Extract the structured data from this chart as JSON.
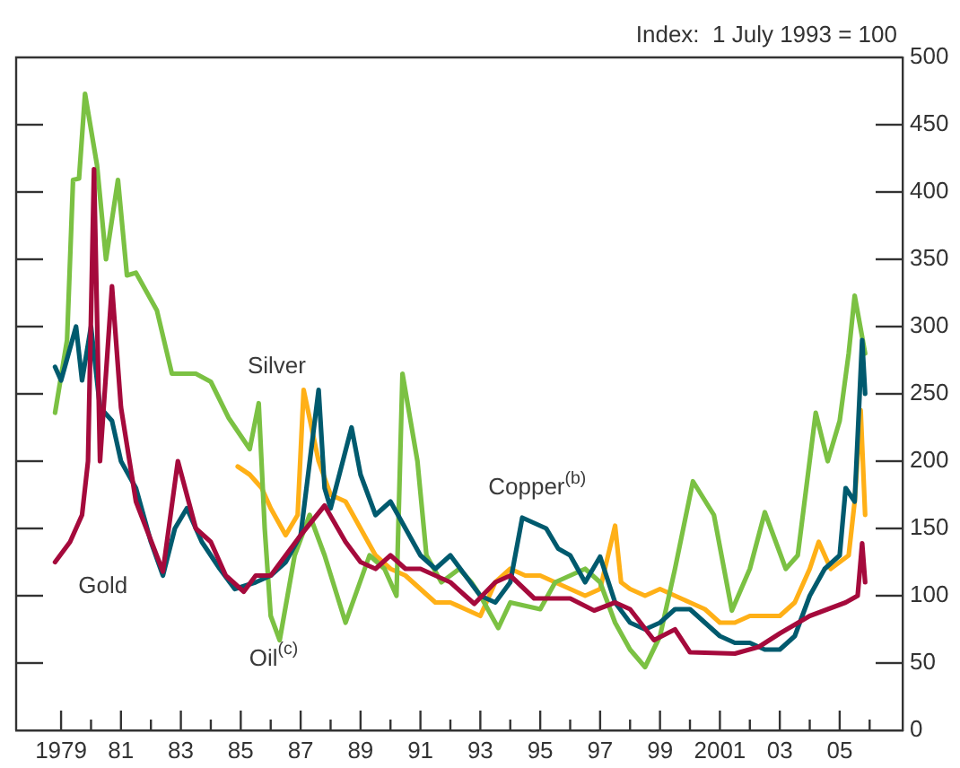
{
  "chart_data": {
    "type": "line",
    "ylabel": "Index:  1 July 1993 = 100",
    "xlim": [
      1977.5,
      2007.1
    ],
    "xticks": [
      {
        "value": 1979,
        "label": "1979"
      },
      {
        "value": 1980,
        "label": null
      },
      {
        "value": 1981,
        "label": "81"
      },
      {
        "value": 1982,
        "label": null
      },
      {
        "value": 1983,
        "label": "83"
      },
      {
        "value": 1984,
        "label": null
      },
      {
        "value": 1985,
        "label": "85"
      },
      {
        "value": 1986,
        "label": null
      },
      {
        "value": 1987,
        "label": "87"
      },
      {
        "value": 1988,
        "label": null
      },
      {
        "value": 1989,
        "label": "89"
      },
      {
        "value": 1990,
        "label": null
      },
      {
        "value": 1991,
        "label": "91"
      },
      {
        "value": 1992,
        "label": null
      },
      {
        "value": 1993,
        "label": "93"
      },
      {
        "value": 1994,
        "label": null
      },
      {
        "value": 1995,
        "label": "95"
      },
      {
        "value": 1996,
        "label": null
      },
      {
        "value": 1997,
        "label": "97"
      },
      {
        "value": 1998,
        "label": null
      },
      {
        "value": 1999,
        "label": "99"
      },
      {
        "value": 2000,
        "label": null
      },
      {
        "value": 2001,
        "label": "2001"
      },
      {
        "value": 2002,
        "label": null
      },
      {
        "value": 2003,
        "label": "03"
      },
      {
        "value": 2004,
        "label": null
      },
      {
        "value": 2005,
        "label": "05"
      },
      {
        "value": 2006,
        "label": null
      }
    ],
    "ylim": [
      0,
      500
    ],
    "yticks": [
      0,
      50,
      100,
      150,
      200,
      250,
      300,
      350,
      400,
      450,
      500
    ],
    "grid": false,
    "legend": false,
    "marker": "none",
    "line_style": "solid",
    "series": [
      {
        "name": "Gold",
        "color": "#a50a3c",
        "x": [
          1978.8,
          1979.3,
          1979.7,
          1979.9,
          1980.1,
          1980.3,
          1980.7,
          1981,
          1981.5,
          1982.4,
          1982.9,
          1983.5,
          1984,
          1984.5,
          1985.1,
          1985.5,
          1986,
          1986.5,
          1987,
          1987.8,
          1988.5,
          1989,
          1989.5,
          1990,
          1990.5,
          1991,
          1991.5,
          1992,
          1992.8,
          1993.5,
          1994,
          1994.8,
          1996,
          1996.8,
          1997.5,
          1998,
          1998.8,
          1999.5,
          2000,
          2001.5,
          2002.3,
          2003,
          2004,
          2004.6,
          2005.2,
          2005.6,
          2005.75,
          2005.85
        ],
        "values": [
          125,
          140,
          160,
          200,
          417,
          200,
          330,
          240,
          170,
          118,
          200,
          150,
          140,
          115,
          103,
          115,
          115,
          130,
          145,
          167,
          140,
          125,
          120,
          130,
          120,
          120,
          115,
          110,
          94,
          110,
          115,
          98,
          98,
          89,
          95,
          90,
          67,
          75,
          58,
          57,
          62,
          72,
          85,
          90,
          95,
          100,
          139,
          110
        ]
      },
      {
        "name": "Copper$^{(b)}$",
        "color": "#005a6e",
        "x": [
          1978.8,
          1979,
          1979.5,
          1979.7,
          1980,
          1980.3,
          1980.7,
          1981,
          1981.5,
          1982,
          1982.4,
          1982.8,
          1983.2,
          1983.7,
          1984.3,
          1984.8,
          1985.5,
          1986,
          1986.5,
          1987,
          1987.6,
          1987.8,
          1988,
          1988.7,
          1989,
          1989.5,
          1990,
          1990.5,
          1991,
          1991.5,
          1992,
          1992.5,
          1993,
          1993.5,
          1994,
          1994.4,
          1995.2,
          1995.6,
          1996,
          1996.5,
          1997,
          1997.5,
          1998,
          1998.5,
          1999,
          1999.5,
          2000,
          2000.5,
          2001,
          2001.5,
          2002,
          2002.5,
          2003,
          2003.5,
          2004,
          2004.5,
          2005,
          2005.2,
          2005.5,
          2005.75,
          2005.85
        ],
        "values": [
          270,
          260,
          300,
          260,
          300,
          240,
          230,
          200,
          180,
          140,
          115,
          150,
          165,
          140,
          120,
          105,
          110,
          115,
          125,
          145,
          253,
          180,
          165,
          225,
          190,
          160,
          170,
          150,
          130,
          120,
          130,
          115,
          100,
          95,
          110,
          158,
          150,
          135,
          130,
          110,
          129,
          95,
          80,
          75,
          80,
          90,
          90,
          80,
          70,
          65,
          65,
          60,
          60,
          70,
          100,
          120,
          130,
          180,
          170,
          290,
          250
        ]
      },
      {
        "name": "Oil$^{(c)}$",
        "color": "#7bc143",
        "x": [
          1978.8,
          1979.2,
          1979.4,
          1979.6,
          1979.8,
          1980.2,
          1980.5,
          1980.9,
          1981.2,
          1981.5,
          1982.2,
          1982.7,
          1983.5,
          1984,
          1984.6,
          1985.3,
          1985.6,
          1985.8,
          1986,
          1986.3,
          1986.8,
          1987.3,
          1987.8,
          1988.5,
          1989.3,
          1989.8,
          1990.2,
          1990.4,
          1990.9,
          1991.2,
          1991.7,
          1992.3,
          1992.7,
          1993,
          1993.6,
          1994,
          1995,
          1995.5,
          1996,
          1996.5,
          1997,
          1997.5,
          1998,
          1998.5,
          1999,
          1999.5,
          2000.1,
          2000.8,
          2001.4,
          2002,
          2002.5,
          2003.2,
          2003.6,
          2004.2,
          2004.6,
          2005.0,
          2005.3,
          2005.5,
          2005.85
        ],
        "values": [
          236,
          290,
          409,
          410,
          473,
          420,
          350,
          409,
          338,
          340,
          312,
          265,
          265,
          259,
          232,
          209,
          243,
          150,
          85,
          67,
          130,
          160,
          130,
          80,
          130,
          120,
          100,
          265,
          200,
          130,
          110,
          120,
          110,
          100,
          76,
          95,
          90,
          110,
          115,
          120,
          110,
          80,
          60,
          47,
          70,
          120,
          185,
          160,
          89,
          120,
          162,
          120,
          130,
          236,
          200,
          230,
          280,
          323,
          280
        ]
      },
      {
        "name": "Silver",
        "color": "#ffb017",
        "x": [
          1984.9,
          1985.3,
          1985.7,
          1986,
          1986.5,
          1986.9,
          1987.1,
          1987.6,
          1988,
          1988.5,
          1989,
          1989.5,
          1990,
          1990.5,
          1991,
          1991.5,
          1992,
          1992.5,
          1993,
          1993.5,
          1994,
          1994.5,
          1995,
          1995.5,
          1996,
          1996.5,
          1997,
          1997.5,
          1997.7,
          1998,
          1998.5,
          1999,
          1999.5,
          2000,
          2000.5,
          2001,
          2001.5,
          2002,
          2002.5,
          2003,
          2003.5,
          2004,
          2004.3,
          2004.7,
          2005,
          2005.3,
          2005.5,
          2005.7,
          2005.85
        ],
        "values": [
          196,
          190,
          180,
          165,
          145,
          160,
          253,
          200,
          175,
          170,
          150,
          130,
          120,
          115,
          105,
          95,
          95,
          90,
          85,
          110,
          120,
          115,
          115,
          110,
          105,
          100,
          105,
          152,
          110,
          105,
          100,
          105,
          100,
          95,
          90,
          80,
          80,
          85,
          85,
          85,
          95,
          120,
          140,
          120,
          125,
          130,
          170,
          238,
          160
        ]
      }
    ]
  }
}
